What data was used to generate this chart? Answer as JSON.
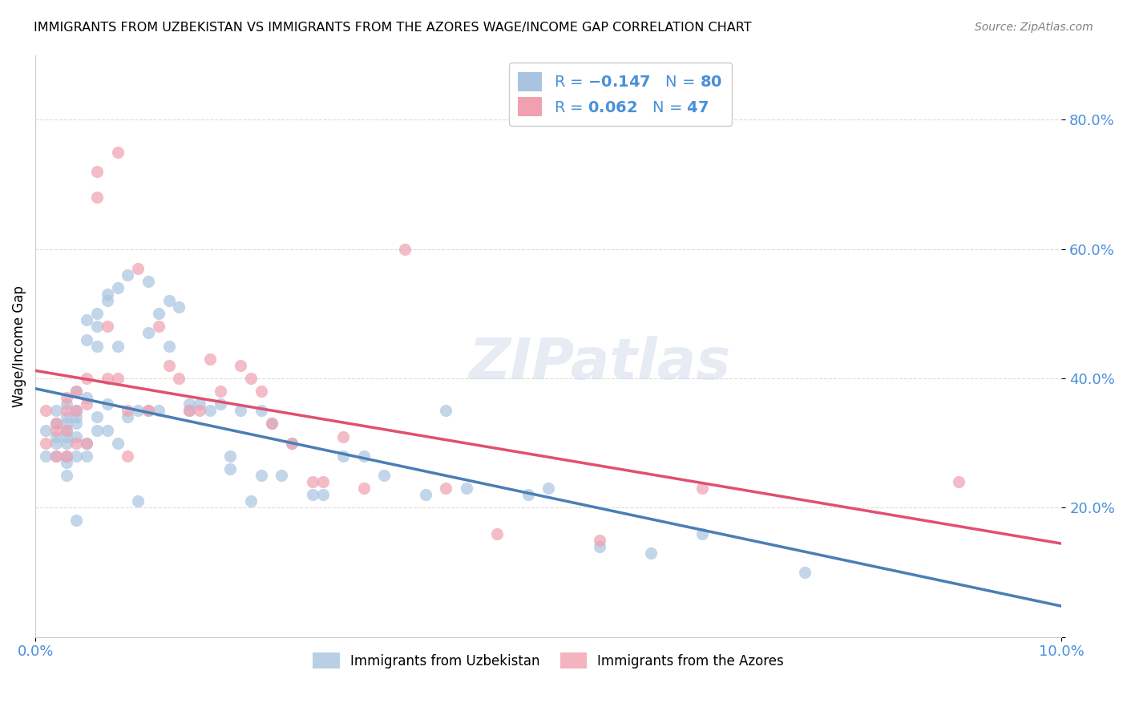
{
  "title": "IMMIGRANTS FROM UZBEKISTAN VS IMMIGRANTS FROM THE AZORES WAGE/INCOME GAP CORRELATION CHART",
  "source": "Source: ZipAtlas.com",
  "xlabel": "",
  "ylabel": "Wage/Income Gap",
  "xlim": [
    0.0,
    0.1
  ],
  "ylim": [
    0.0,
    0.9
  ],
  "yticks": [
    0.0,
    0.2,
    0.4,
    0.6,
    0.8
  ],
  "xticks": [
    0.0,
    0.1
  ],
  "xtick_labels": [
    "0.0%",
    "10.0%"
  ],
  "ytick_labels": [
    "",
    "20.0%",
    "40.0%",
    "60.0%",
    "80.0%"
  ],
  "uzbekistan_color": "#a8c4e0",
  "azores_color": "#f0a0b0",
  "uzbekistan_line_color": "#4a7fb5",
  "azores_line_color": "#e05070",
  "dashed_line_color": "#a8c4e0",
  "r_uzbekistan": -0.147,
  "n_uzbekistan": 80,
  "r_azores": 0.062,
  "n_azores": 47,
  "legend_r_color": "#4a7fb5",
  "legend_label1": "Immigrants from Uzbekistan",
  "legend_label2": "Immigrants from the Azores",
  "watermark": "ZIPatlas",
  "uzbekistan_x": [
    0.001,
    0.001,
    0.002,
    0.002,
    0.002,
    0.002,
    0.002,
    0.003,
    0.003,
    0.003,
    0.003,
    0.003,
    0.003,
    0.003,
    0.003,
    0.003,
    0.004,
    0.004,
    0.004,
    0.004,
    0.004,
    0.004,
    0.004,
    0.005,
    0.005,
    0.005,
    0.005,
    0.005,
    0.006,
    0.006,
    0.006,
    0.006,
    0.006,
    0.007,
    0.007,
    0.007,
    0.007,
    0.008,
    0.008,
    0.008,
    0.009,
    0.009,
    0.01,
    0.01,
    0.011,
    0.011,
    0.011,
    0.012,
    0.012,
    0.013,
    0.013,
    0.014,
    0.015,
    0.015,
    0.016,
    0.017,
    0.018,
    0.019,
    0.019,
    0.02,
    0.021,
    0.022,
    0.022,
    0.023,
    0.024,
    0.025,
    0.027,
    0.028,
    0.03,
    0.032,
    0.034,
    0.038,
    0.04,
    0.042,
    0.048,
    0.05,
    0.055,
    0.06,
    0.065,
    0.075
  ],
  "uzbekistan_y": [
    0.32,
    0.28,
    0.35,
    0.33,
    0.31,
    0.3,
    0.28,
    0.36,
    0.34,
    0.33,
    0.32,
    0.31,
    0.3,
    0.28,
    0.27,
    0.25,
    0.38,
    0.35,
    0.34,
    0.33,
    0.31,
    0.28,
    0.18,
    0.37,
    0.49,
    0.46,
    0.3,
    0.28,
    0.5,
    0.48,
    0.45,
    0.34,
    0.32,
    0.53,
    0.52,
    0.36,
    0.32,
    0.54,
    0.45,
    0.3,
    0.56,
    0.34,
    0.35,
    0.21,
    0.55,
    0.47,
    0.35,
    0.5,
    0.35,
    0.52,
    0.45,
    0.51,
    0.36,
    0.35,
    0.36,
    0.35,
    0.36,
    0.28,
    0.26,
    0.35,
    0.21,
    0.35,
    0.25,
    0.33,
    0.25,
    0.3,
    0.22,
    0.22,
    0.28,
    0.28,
    0.25,
    0.22,
    0.35,
    0.23,
    0.22,
    0.23,
    0.14,
    0.13,
    0.16,
    0.1
  ],
  "azores_x": [
    0.001,
    0.001,
    0.002,
    0.002,
    0.002,
    0.003,
    0.003,
    0.003,
    0.003,
    0.004,
    0.004,
    0.004,
    0.005,
    0.005,
    0.005,
    0.006,
    0.006,
    0.007,
    0.007,
    0.008,
    0.008,
    0.009,
    0.009,
    0.01,
    0.011,
    0.012,
    0.013,
    0.014,
    0.015,
    0.016,
    0.017,
    0.018,
    0.02,
    0.021,
    0.022,
    0.023,
    0.025,
    0.027,
    0.028,
    0.03,
    0.032,
    0.036,
    0.04,
    0.045,
    0.055,
    0.065,
    0.09
  ],
  "azores_y": [
    0.35,
    0.3,
    0.33,
    0.32,
    0.28,
    0.37,
    0.35,
    0.32,
    0.28,
    0.38,
    0.35,
    0.3,
    0.4,
    0.36,
    0.3,
    0.72,
    0.68,
    0.48,
    0.4,
    0.75,
    0.4,
    0.35,
    0.28,
    0.57,
    0.35,
    0.48,
    0.42,
    0.4,
    0.35,
    0.35,
    0.43,
    0.38,
    0.42,
    0.4,
    0.38,
    0.33,
    0.3,
    0.24,
    0.24,
    0.31,
    0.23,
    0.6,
    0.23,
    0.16,
    0.15,
    0.23,
    0.24
  ]
}
